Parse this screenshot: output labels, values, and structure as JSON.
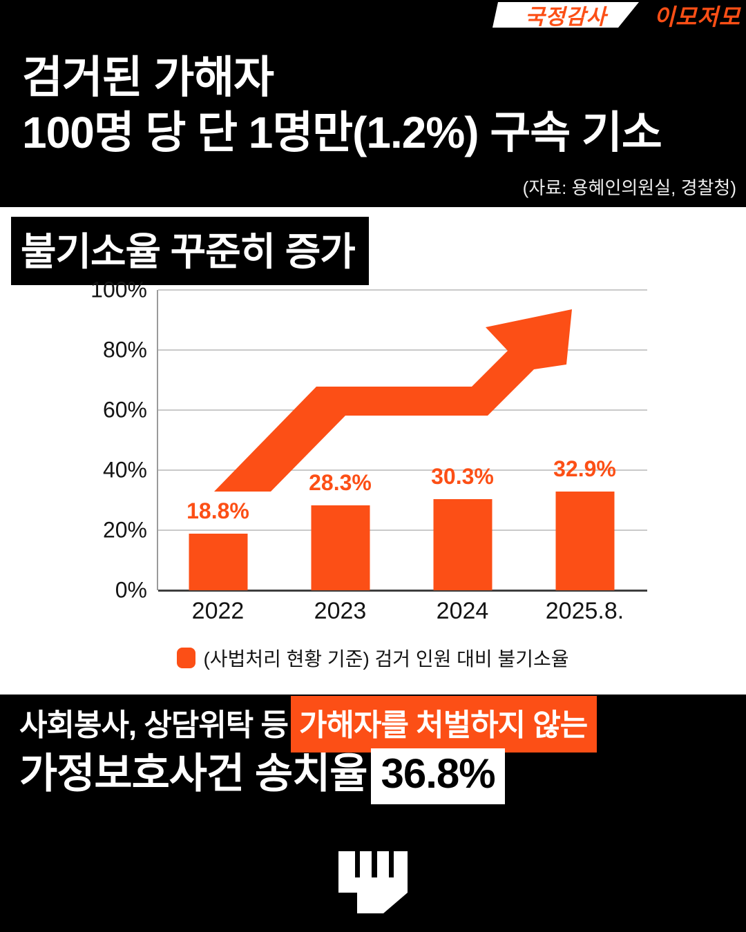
{
  "badge": {
    "left_label": "국정감사",
    "right_label": "이모저모"
  },
  "header": {
    "title_line1": "검거된 가해자",
    "title_line2": "100명 당 단 1명만(1.2%) 구속 기소",
    "source": "(자료: 용혜인의원실, 경찰청)"
  },
  "section": {
    "title": "불기소율 꾸준히 증가"
  },
  "chart_data": {
    "type": "bar",
    "title": "불기소율 꾸준히 증가",
    "categories": [
      "2022",
      "2023",
      "2024",
      "2025.8."
    ],
    "values": [
      18.8,
      28.3,
      30.3,
      32.9
    ],
    "value_labels": [
      "18.8%",
      "28.3%",
      "30.3%",
      "32.9%"
    ],
    "xlabel": "",
    "ylabel": "",
    "ylim": [
      0,
      100
    ],
    "y_ticks": [
      "0%",
      "20%",
      "40%",
      "60%",
      "80%",
      "100%"
    ],
    "grid": true,
    "bar_color": "#FC4F16",
    "legend": [
      {
        "label": "(사법처리 현황 기준) 검거 인원 대비 불기소율",
        "color": "#FC4F16"
      }
    ],
    "legend_position": "bottom",
    "annotation": "rising trend arrow"
  },
  "footer": {
    "line1_prefix": "사회봉사, 상담위탁 등",
    "line1_highlight": "가해자를 처벌하지 않는",
    "line2_prefix": "가정보호사건 송치율",
    "line2_highlight": "36.8%"
  },
  "colors": {
    "accent_orange": "#FC4F16",
    "background_black": "#000000",
    "panel_white": "#FFFFFF",
    "gridline_gray": "#C9C9C9"
  },
  "icons": {
    "fist": "fist-icon",
    "trend_arrow": "trend-arrow-icon",
    "legend_swatch": "legend-swatch-icon"
  }
}
